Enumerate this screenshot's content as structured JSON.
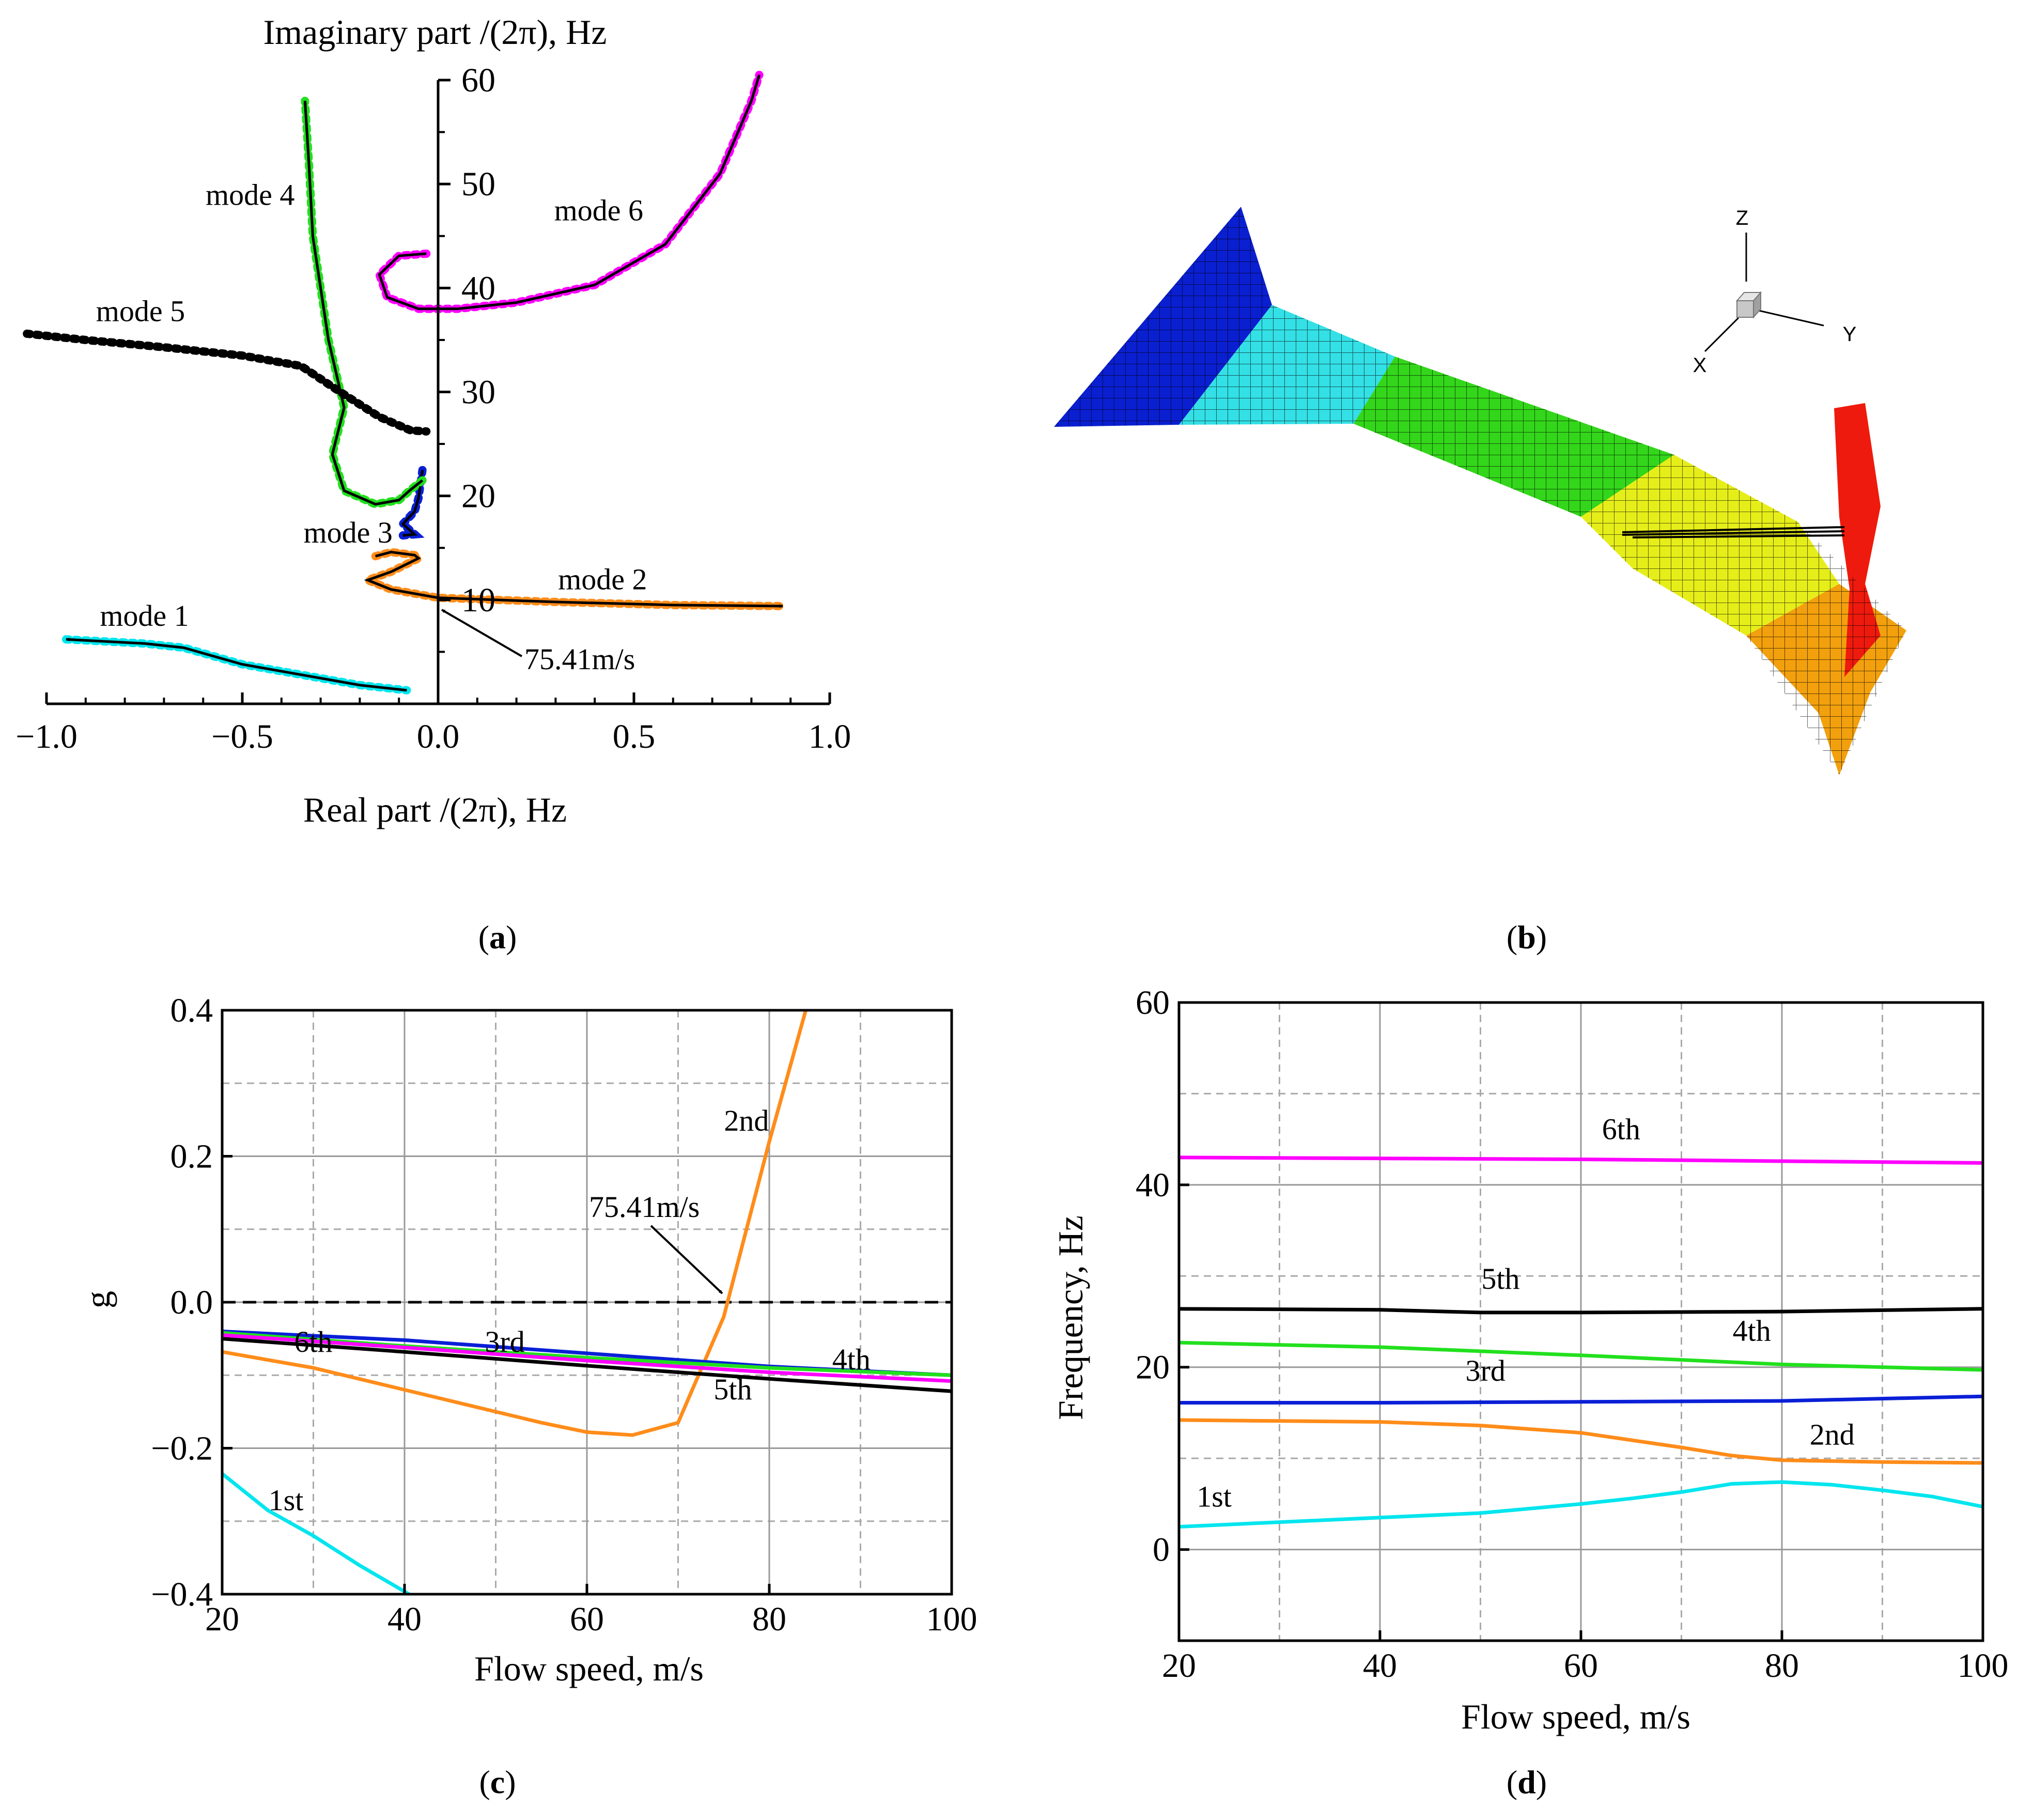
{
  "panels": {
    "a": {
      "caption_label": "a"
    },
    "b": {
      "caption_label": "b"
    },
    "c": {
      "caption_label": "c"
    },
    "d": {
      "caption_label": "d"
    }
  },
  "colors": {
    "mode1": "#00e5ee",
    "mode2": "#ff8c1a",
    "mode3": "#0a1fd6",
    "mode4": "#22e01e",
    "mode5": "#000000",
    "mode6": "#ff00ff",
    "struct_blue": "#0a1fd0",
    "struct_cyan": "#33e0e6",
    "struct_green": "#33d61a",
    "struct_yellow": "#e6ee1a",
    "struct_orange": "#f2a00d",
    "struct_red": "#ee1a0d"
  },
  "chart_data": [
    {
      "panel": "a",
      "type": "line",
      "title": "",
      "xlabel": "Real part /(2π), Hz",
      "ylabel": "Imaginary part /(2π), Hz",
      "xlim": [
        -1.0,
        1.0
      ],
      "ylim": [
        0,
        60
      ],
      "xticks": [
        -1.0,
        -0.5,
        0.0,
        0.5,
        1.0
      ],
      "xtick_labels": [
        "−1.0",
        "−0.5",
        "0.0",
        "0.5",
        "1.0"
      ],
      "yticks": [
        10,
        20,
        30,
        40,
        50,
        60
      ],
      "ytick_labels": [
        "10",
        "20",
        "30",
        "40",
        "50",
        "60"
      ],
      "annotation": {
        "text": "75.41m/s",
        "x": -0.02,
        "y": 10.4
      },
      "series": [
        {
          "name": "mode 1",
          "label": "mode 1",
          "color_key": "mode1",
          "arrow_end": "start",
          "points": [
            [
              -0.95,
              6.2
            ],
            [
              -0.75,
              5.8
            ],
            [
              -0.65,
              5.4
            ],
            [
              -0.5,
              3.8
            ],
            [
              -0.35,
              2.8
            ],
            [
              -0.2,
              1.8
            ],
            [
              -0.08,
              1.3
            ]
          ]
        },
        {
          "name": "mode 2",
          "label": "mode 2",
          "color_key": "mode2",
          "arrow_end": "end",
          "points": [
            [
              -0.16,
              14.2
            ],
            [
              -0.12,
              14.6
            ],
            [
              -0.06,
              14.3
            ],
            [
              -0.05,
              14.0
            ],
            [
              -0.12,
              12.7
            ],
            [
              -0.18,
              11.9
            ],
            [
              -0.12,
              11.0
            ],
            [
              0.0,
              10.2
            ],
            [
              0.3,
              9.8
            ],
            [
              0.6,
              9.5
            ],
            [
              0.88,
              9.4
            ]
          ]
        },
        {
          "name": "mode 3",
          "label": "mode 3",
          "color_key": "mode3",
          "arrow_end": "end",
          "points": [
            [
              -0.09,
              16.2
            ],
            [
              -0.06,
              16.3
            ],
            [
              -0.09,
              17.3
            ],
            [
              -0.06,
              18.5
            ],
            [
              -0.05,
              19.8
            ],
            [
              -0.04,
              22.5
            ]
          ]
        },
        {
          "name": "mode 4",
          "label": "mode 4",
          "color_key": "mode4",
          "arrow_end": "end",
          "points": [
            [
              -0.04,
              21.5
            ],
            [
              -0.07,
              20.6
            ],
            [
              -0.1,
              19.6
            ],
            [
              -0.16,
              19.2
            ],
            [
              -0.24,
              20.5
            ],
            [
              -0.27,
              24.0
            ],
            [
              -0.24,
              28.5
            ],
            [
              -0.28,
              35.0
            ],
            [
              -0.32,
              45.0
            ],
            [
              -0.33,
              52.0
            ],
            [
              -0.34,
              58.0
            ]
          ]
        },
        {
          "name": "mode 5",
          "label": "mode 5",
          "color_key": "mode5",
          "arrow_end": "start",
          "points": [
            [
              -1.05,
              35.6
            ],
            [
              -0.9,
              35.0
            ],
            [
              -0.7,
              34.3
            ],
            [
              -0.5,
              33.5
            ],
            [
              -0.35,
              32.5
            ],
            [
              -0.25,
              30.0
            ],
            [
              -0.15,
              27.6
            ],
            [
              -0.07,
              26.3
            ],
            [
              -0.03,
              26.2
            ]
          ]
        },
        {
          "name": "mode 6",
          "label": "mode 6",
          "color_key": "mode6",
          "arrow_end": "end",
          "points": [
            [
              -0.03,
              43.3
            ],
            [
              -0.1,
              43.1
            ],
            [
              -0.15,
              41.3
            ],
            [
              -0.13,
              39.1
            ],
            [
              -0.05,
              38.0
            ],
            [
              0.05,
              38.0
            ],
            [
              0.2,
              38.6
            ],
            [
              0.4,
              40.3
            ],
            [
              0.58,
              44.2
            ],
            [
              0.72,
              51.0
            ],
            [
              0.8,
              58.0
            ],
            [
              0.82,
              60.5
            ]
          ]
        }
      ]
    },
    {
      "panel": "c",
      "type": "line",
      "title": "",
      "xlabel": "Flow speed, m/s",
      "ylabel": "g",
      "xlim": [
        20,
        100
      ],
      "ylim": [
        -0.4,
        0.4
      ],
      "xticks": [
        20,
        40,
        60,
        80,
        100
      ],
      "xtick_labels": [
        "20",
        "40",
        "60",
        "80",
        "100"
      ],
      "yticks": [
        -0.4,
        -0.2,
        0.0,
        0.2,
        0.4
      ],
      "ytick_labels": [
        "−0.4",
        "−0.2",
        "0.0",
        "0.2",
        "0.4"
      ],
      "grid": true,
      "zero_line": 0.0,
      "annotation": {
        "text": "75.41m/s",
        "x": 75.41,
        "y": 0.0
      },
      "series": [
        {
          "name": "1st",
          "label": "1st",
          "color_key": "mode1",
          "x": [
            20,
            25,
            30,
            35,
            40.5
          ],
          "y": [
            -0.235,
            -0.285,
            -0.32,
            -0.36,
            -0.4
          ]
        },
        {
          "name": "2nd",
          "label": "2nd",
          "color_key": "mode2",
          "x": [
            20,
            30,
            40,
            50,
            55,
            60,
            65,
            70,
            75,
            80,
            84
          ],
          "y": [
            -0.068,
            -0.09,
            -0.12,
            -0.15,
            -0.165,
            -0.178,
            -0.182,
            -0.165,
            -0.02,
            0.22,
            0.4
          ]
        },
        {
          "name": "3rd",
          "label": "3rd",
          "color_key": "mode3",
          "x": [
            20,
            40,
            60,
            80,
            100
          ],
          "y": [
            -0.04,
            -0.052,
            -0.07,
            -0.088,
            -0.1
          ]
        },
        {
          "name": "4th",
          "label": "4th",
          "color_key": "mode4",
          "x": [
            20,
            40,
            60,
            80,
            100
          ],
          "y": [
            -0.042,
            -0.06,
            -0.076,
            -0.09,
            -0.1
          ]
        },
        {
          "name": "5th",
          "label": "5th",
          "color_key": "mode5",
          "x": [
            20,
            40,
            60,
            80,
            100
          ],
          "y": [
            -0.05,
            -0.068,
            -0.087,
            -0.105,
            -0.122
          ]
        },
        {
          "name": "6th",
          "label": "6th",
          "color_key": "mode6",
          "x": [
            20,
            40,
            60,
            80,
            100
          ],
          "y": [
            -0.045,
            -0.062,
            -0.08,
            -0.096,
            -0.108
          ]
        }
      ]
    },
    {
      "panel": "d",
      "type": "line",
      "title": "",
      "xlabel": "Flow speed, m/s",
      "ylabel": "Frequency, Hz",
      "xlim": [
        20,
        100
      ],
      "ylim": [
        -10,
        60
      ],
      "xticks": [
        20,
        40,
        60,
        80,
        100
      ],
      "xtick_labels": [
        "20",
        "40",
        "60",
        "80",
        "100"
      ],
      "yticks": [
        0,
        20,
        40,
        60
      ],
      "ytick_labels": [
        "0",
        "20",
        "40",
        "60"
      ],
      "grid": true,
      "series": [
        {
          "name": "1st",
          "label": "1st",
          "color_key": "mode1",
          "x": [
            20,
            30,
            40,
            50,
            60,
            65,
            70,
            75,
            80,
            85,
            90,
            95,
            100
          ],
          "y": [
            2.5,
            3.0,
            3.5,
            4.0,
            5.0,
            5.6,
            6.3,
            7.2,
            7.4,
            7.1,
            6.5,
            5.8,
            4.7
          ]
        },
        {
          "name": "2nd",
          "label": "2nd",
          "color_key": "mode2",
          "x": [
            20,
            30,
            40,
            50,
            60,
            65,
            70,
            75,
            80,
            90,
            100
          ],
          "y": [
            14.2,
            14.1,
            14.0,
            13.6,
            12.8,
            12.0,
            11.2,
            10.3,
            9.8,
            9.6,
            9.5
          ]
        },
        {
          "name": "3rd",
          "label": "3rd",
          "color_key": "mode3",
          "x": [
            20,
            40,
            60,
            80,
            100
          ],
          "y": [
            16.1,
            16.1,
            16.2,
            16.3,
            16.8
          ]
        },
        {
          "name": "4th",
          "label": "4th",
          "color_key": "mode4",
          "x": [
            20,
            40,
            60,
            80,
            100
          ],
          "y": [
            22.7,
            22.2,
            21.3,
            20.3,
            19.7
          ]
        },
        {
          "name": "5th",
          "label": "5th",
          "color_key": "mode5",
          "x": [
            20,
            40,
            50,
            60,
            80,
            100
          ],
          "y": [
            26.4,
            26.3,
            26.0,
            26.0,
            26.1,
            26.4
          ]
        },
        {
          "name": "6th",
          "label": "6th",
          "color_key": "mode6",
          "x": [
            20,
            40,
            60,
            80,
            100
          ],
          "y": [
            43.0,
            42.9,
            42.8,
            42.6,
            42.4
          ]
        }
      ]
    }
  ],
  "structure": {
    "axis_labels": {
      "z": "Z",
      "y": "Y",
      "x": "X"
    }
  }
}
